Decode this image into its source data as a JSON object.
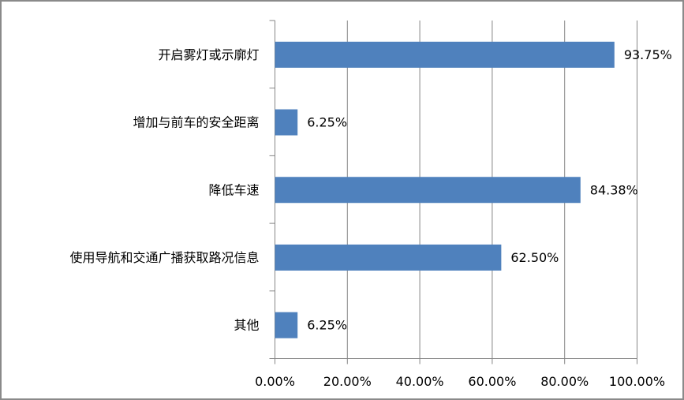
{
  "chart_data": {
    "type": "bar",
    "orientation": "horizontal",
    "categories": [
      "开启雾灯或示廓灯",
      "增加与前车的安全距离",
      "降低车速",
      "使用导航和交通广播获取路况信息",
      "其他"
    ],
    "values": [
      93.75,
      6.25,
      84.38,
      62.5,
      6.25
    ],
    "data_labels": [
      "93.75%",
      "6.25%",
      "84.38%",
      "62.50%",
      "6.25%"
    ],
    "x_ticks": [
      "0.00%",
      "20.00%",
      "40.00%",
      "60.00%",
      "80.00%",
      "100.00%"
    ],
    "xlim": [
      0,
      100
    ],
    "title": "",
    "xlabel": "",
    "ylabel": "",
    "grid": "vertical",
    "legend": "none",
    "bar_color": "#4f81bd",
    "grid_color": "#868686"
  }
}
